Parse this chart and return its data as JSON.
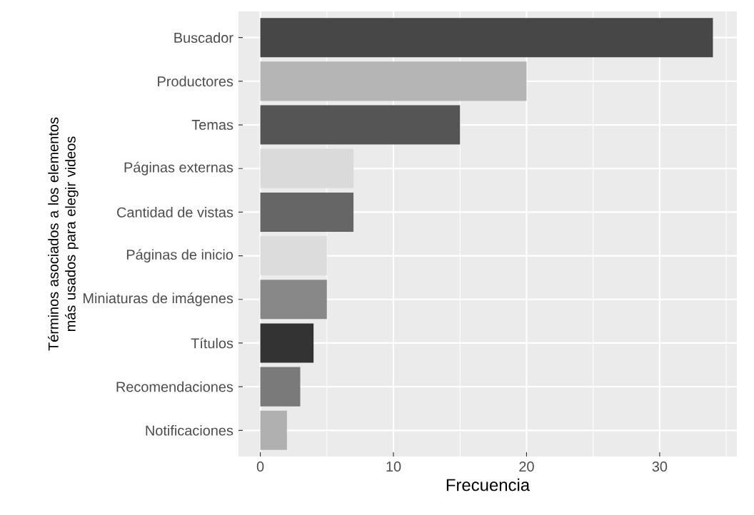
{
  "chart_data": {
    "type": "bar",
    "orientation": "horizontal",
    "xlabel": "Frecuencia",
    "ylabel": "Términos asociados a los elementos más usados para elegir videos",
    "categories": [
      "Buscador",
      "Productores",
      "Temas",
      "Páginas externas",
      "Cantidad de vistas",
      "Páginas de inicio",
      "Miniaturas de imágenes",
      "Títulos",
      "Recomendaciones",
      "Notificaciones"
    ],
    "values": [
      34,
      20,
      15,
      7,
      7,
      5,
      5,
      4,
      3,
      2
    ],
    "colors": [
      "#474747",
      "#b5b5b5",
      "#555555",
      "#dadada",
      "#666666",
      "#dcdcdc",
      "#888888",
      "#333333",
      "#7a7a7a",
      "#b0b0b0"
    ],
    "xlim": [
      -1.64,
      35.8
    ],
    "xticks": [
      0,
      10,
      20,
      30
    ],
    "grid": true
  }
}
